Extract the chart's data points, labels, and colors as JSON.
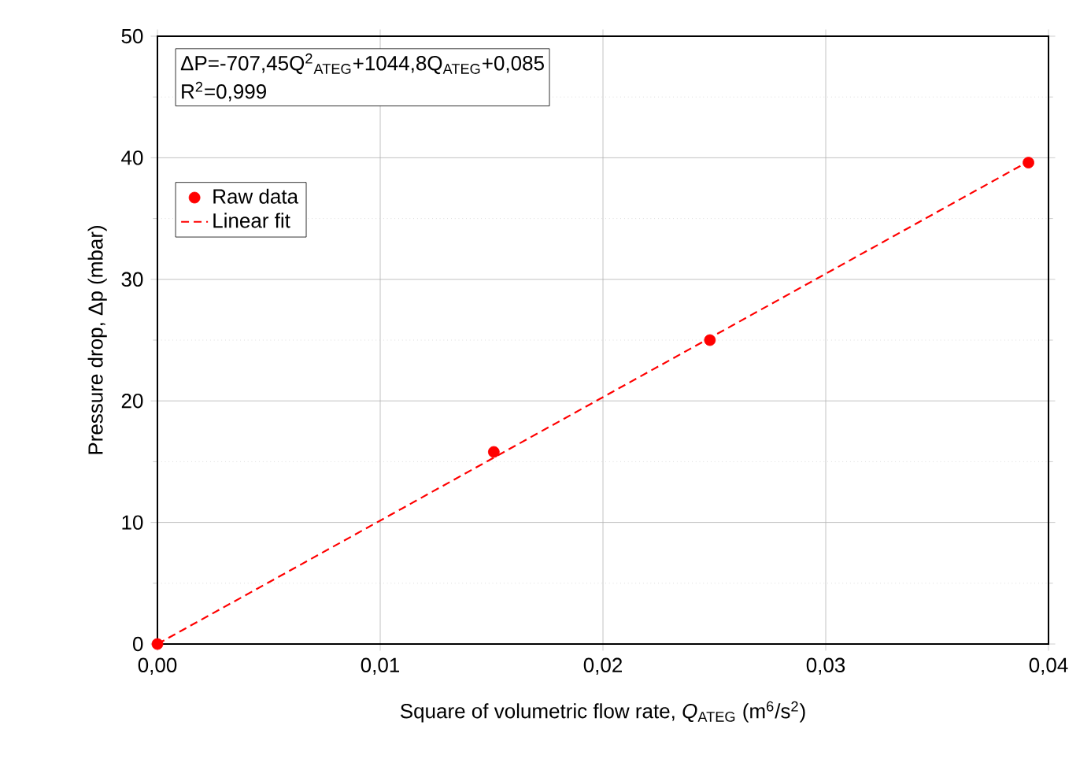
{
  "chart_data": {
    "type": "scatter",
    "xlabel": "Square of volumetric flow rate, *Q*$_{ATEG}$ (m$^{6}$/s$^{2}$)",
    "ylabel": "Pressure drop, Δp (mbar)",
    "annotations": [
      "ΔP=-707,45Q$^{2}$$_{ATEG}$+1044,8Q$_{ATEG}$+0,085",
      "R$^{2}$=0,999"
    ],
    "series": [
      {
        "name": "Raw data",
        "color": "#ff0000",
        "marker": "circle",
        "x": [
          0,
          0.0151,
          0.0248,
          0.0391
        ],
        "values": [
          0,
          15.8,
          25.0,
          39.6
        ]
      },
      {
        "name": "Linear fit",
        "type": "line",
        "color": "#ff0000",
        "marker": "none",
        "line_style": "dashed",
        "x": [
          0,
          0.0391
        ],
        "values": [
          0,
          39.7
        ]
      }
    ],
    "xlim": [
      0,
      0.04
    ],
    "ylim": [
      0,
      50
    ],
    "xticks": [
      {
        "value": 0,
        "label": "0,00"
      },
      {
        "value": 0.01,
        "label": "0,01"
      },
      {
        "value": 0.02,
        "label": "0,02"
      },
      {
        "value": 0.03,
        "label": "0,03"
      },
      {
        "value": 0.04,
        "label": "0,04"
      }
    ],
    "yticks": [
      0,
      10,
      20,
      30,
      40,
      50
    ],
    "grid": true,
    "legend": "top left"
  }
}
